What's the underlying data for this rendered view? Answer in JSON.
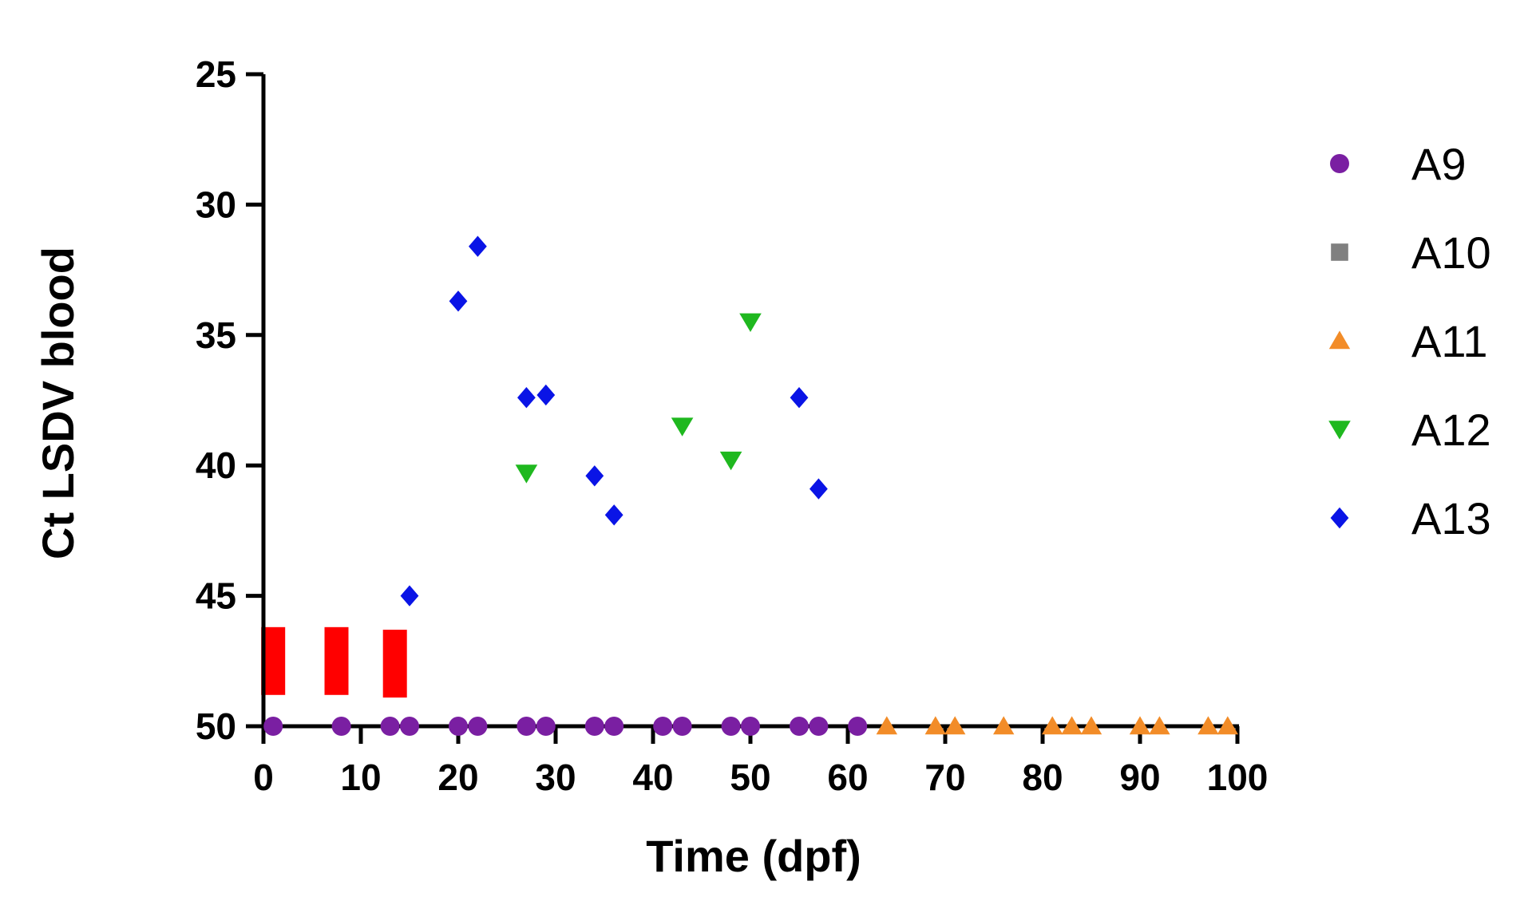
{
  "chart_data": {
    "type": "scatter",
    "xlabel": "Time (dpf)",
    "ylabel": "Ct LSDV blood",
    "xlim": [
      0,
      100
    ],
    "ylim": [
      25,
      50
    ],
    "y_inverted": true,
    "x_ticks": [
      0,
      10,
      20,
      30,
      40,
      50,
      60,
      70,
      80,
      90,
      100
    ],
    "y_ticks": [
      25,
      30,
      35,
      40,
      45,
      50
    ],
    "legend_position": "right",
    "series": [
      {
        "name": "A9",
        "marker": "circle",
        "color": "#7a1fa2",
        "points": [
          [
            1,
            50
          ],
          [
            8,
            50
          ],
          [
            13,
            50
          ],
          [
            15,
            50
          ],
          [
            20,
            50
          ],
          [
            22,
            50
          ],
          [
            27,
            50
          ],
          [
            29,
            50
          ],
          [
            34,
            50
          ],
          [
            36,
            50
          ],
          [
            41,
            50
          ],
          [
            43,
            50
          ],
          [
            48,
            50
          ],
          [
            50,
            50
          ],
          [
            55,
            50
          ],
          [
            57,
            50
          ],
          [
            61,
            50
          ]
        ]
      },
      {
        "name": "A10",
        "marker": "square",
        "color": "#808080",
        "points": []
      },
      {
        "name": "A11",
        "marker": "triangle-up",
        "color": "#f28c28",
        "points": [
          [
            64,
            50
          ],
          [
            69,
            50
          ],
          [
            71,
            50
          ],
          [
            76,
            50
          ],
          [
            81,
            50
          ],
          [
            83,
            50
          ],
          [
            85,
            50
          ],
          [
            90,
            50
          ],
          [
            92,
            50
          ],
          [
            97,
            50
          ],
          [
            99,
            50
          ]
        ]
      },
      {
        "name": "A12",
        "marker": "triangle-down",
        "color": "#1fb81f",
        "points": [
          [
            27,
            40.3
          ],
          [
            43,
            38.5
          ],
          [
            48,
            39.8
          ],
          [
            50,
            34.5
          ]
        ]
      },
      {
        "name": "A13",
        "marker": "diamond",
        "color": "#0a14e6",
        "points": [
          [
            15,
            45
          ],
          [
            20,
            33.7
          ],
          [
            22,
            31.6
          ],
          [
            27,
            37.4
          ],
          [
            29,
            37.3
          ],
          [
            34,
            40.4
          ],
          [
            36,
            41.9
          ],
          [
            55,
            37.4
          ],
          [
            57,
            40.9
          ]
        ]
      }
    ],
    "annotations": [
      {
        "type": "bar",
        "color": "#ff0000",
        "x": 1,
        "y_from": 46.2,
        "y_to": 48.8
      },
      {
        "type": "bar",
        "color": "#ff0000",
        "x": 7.5,
        "y_from": 46.2,
        "y_to": 48.8
      },
      {
        "type": "bar",
        "color": "#ff0000",
        "x": 13.5,
        "y_from": 46.3,
        "y_to": 48.9
      }
    ]
  }
}
